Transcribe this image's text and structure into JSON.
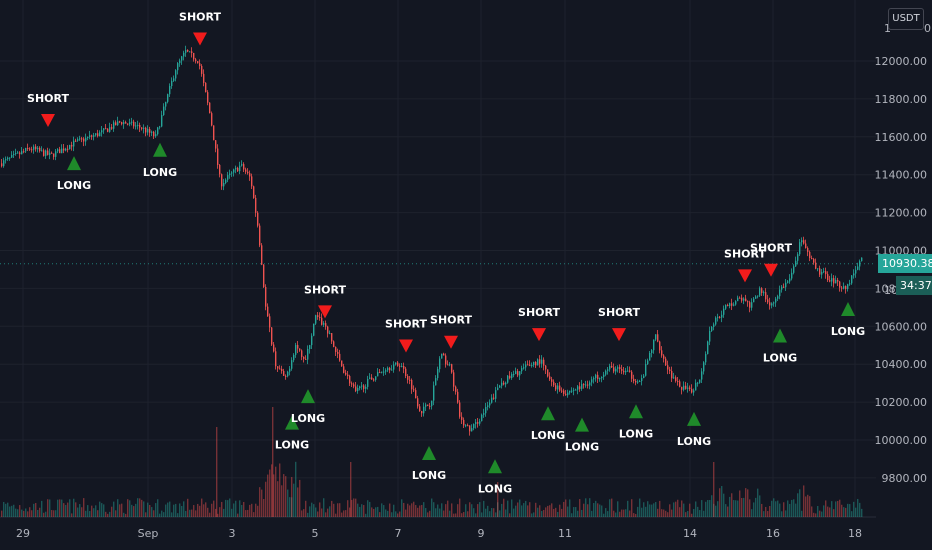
{
  "chart_data": {
    "type": "candlestick",
    "y_ticks": [
      12000,
      11800,
      11600,
      11400,
      11200,
      11000,
      10800,
      10600,
      10400,
      10200,
      10000,
      9800
    ],
    "y_tick_labels": [
      "12000.00",
      "11800.00",
      "11600.00",
      "11400.00",
      "11200.00",
      "11000.00",
      "10800.00",
      "10600.00",
      "10400.00",
      "10200.00",
      "10000.00",
      "9800.00"
    ],
    "ylim": [
      9700,
      12250
    ],
    "x_ticks": [
      "29",
      "Sep",
      "3",
      "5",
      "7",
      "9",
      "11",
      "14",
      "16",
      "18"
    ],
    "price_path": [
      [
        0,
        11460
      ],
      [
        30,
        11540
      ],
      [
        50,
        11500
      ],
      [
        70,
        11560
      ],
      [
        100,
        11620
      ],
      [
        120,
        11680
      ],
      [
        140,
        11650
      ],
      [
        155,
        11600
      ],
      [
        165,
        11780
      ],
      [
        175,
        11960
      ],
      [
        185,
        12050
      ],
      [
        198,
        12000
      ],
      [
        210,
        11700
      ],
      [
        220,
        11350
      ],
      [
        230,
        11400
      ],
      [
        240,
        11450
      ],
      [
        250,
        11380
      ],
      [
        258,
        11100
      ],
      [
        265,
        10700
      ],
      [
        275,
        10400
      ],
      [
        285,
        10320
      ],
      [
        295,
        10500
      ],
      [
        305,
        10420
      ],
      [
        315,
        10650
      ],
      [
        325,
        10600
      ],
      [
        340,
        10400
      ],
      [
        355,
        10250
      ],
      [
        370,
        10320
      ],
      [
        385,
        10380
      ],
      [
        400,
        10400
      ],
      [
        410,
        10300
      ],
      [
        420,
        10150
      ],
      [
        430,
        10200
      ],
      [
        440,
        10450
      ],
      [
        450,
        10380
      ],
      [
        460,
        10100
      ],
      [
        470,
        10050
      ],
      [
        480,
        10120
      ],
      [
        490,
        10200
      ],
      [
        500,
        10300
      ],
      [
        515,
        10350
      ],
      [
        530,
        10400
      ],
      [
        540,
        10420
      ],
      [
        550,
        10300
      ],
      [
        565,
        10250
      ],
      [
        580,
        10280
      ],
      [
        595,
        10330
      ],
      [
        610,
        10380
      ],
      [
        625,
        10360
      ],
      [
        640,
        10300
      ],
      [
        655,
        10550
      ],
      [
        665,
        10400
      ],
      [
        675,
        10300
      ],
      [
        690,
        10250
      ],
      [
        700,
        10340
      ],
      [
        710,
        10600
      ],
      [
        725,
        10700
      ],
      [
        740,
        10750
      ],
      [
        750,
        10700
      ],
      [
        760,
        10800
      ],
      [
        770,
        10700
      ],
      [
        780,
        10800
      ],
      [
        790,
        10850
      ],
      [
        800,
        11050
      ],
      [
        815,
        10900
      ],
      [
        830,
        10850
      ],
      [
        845,
        10800
      ],
      [
        860,
        10950
      ]
    ],
    "signals": [
      {
        "type": "SHORT",
        "x": "Aug 29",
        "y": 11620
      },
      {
        "type": "LONG",
        "x": "Aug 30",
        "y": 11530
      },
      {
        "type": "LONG",
        "x": "Aug 31",
        "y": 11600
      },
      {
        "type": "SHORT",
        "x": "Sep 1",
        "y": 12050
      },
      {
        "type": "LONG",
        "x": "Sep 4",
        "y": 10160
      },
      {
        "type": "LONG",
        "x": "Sep 4",
        "y": 10300
      },
      {
        "type": "SHORT",
        "x": "Sep 5",
        "y": 10610
      },
      {
        "type": "SHORT",
        "x": "Sep 7",
        "y": 10430
      },
      {
        "type": "LONG",
        "x": "Sep 8",
        "y": 10000
      },
      {
        "type": "SHORT",
        "x": "Sep 8",
        "y": 10450
      },
      {
        "type": "LONG",
        "x": "Sep 9",
        "y": 9930
      },
      {
        "type": "SHORT",
        "x": "Sep 10",
        "y": 10490
      },
      {
        "type": "LONG",
        "x": "Sep 11",
        "y": 10210
      },
      {
        "type": "LONG",
        "x": "Sep 12",
        "y": 10150
      },
      {
        "type": "SHORT",
        "x": "Sep 13",
        "y": 10490
      },
      {
        "type": "LONG",
        "x": "Sep 13",
        "y": 10220
      },
      {
        "type": "LONG",
        "x": "Sep 14",
        "y": 10180
      },
      {
        "type": "SHORT",
        "x": "Sep 15",
        "y": 10800
      },
      {
        "type": "SHORT",
        "x": "Sep 16",
        "y": 10830
      },
      {
        "type": "LONG",
        "x": "Sep 16",
        "y": 10620
      },
      {
        "type": "LONG",
        "x": "Sep 18",
        "y": 10760
      }
    ],
    "current_price": "10930.38",
    "countdown": "34:37",
    "partial_y_labels": [
      "1",
      "0",
      "10"
    ],
    "unit": "USDT",
    "colors": {
      "up": "#26a69a",
      "down": "#ef5350",
      "short_marker": "#f21c1c",
      "long_marker": "#1f8a2a",
      "grid": "#1e222d",
      "background": "#131722"
    }
  }
}
